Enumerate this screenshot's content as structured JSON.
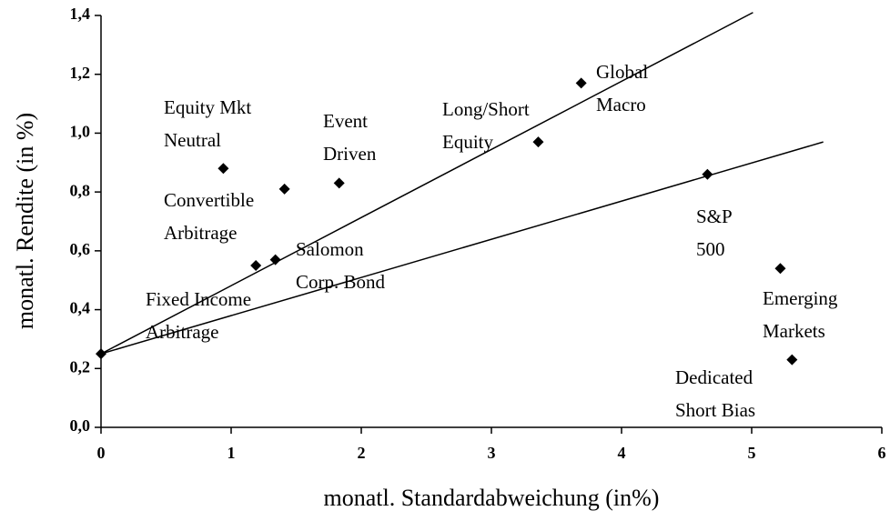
{
  "chart_data": {
    "type": "scatter",
    "x_label": "monatl. Standardabweichung (in%)",
    "y_label": "monatl. Rendite (in %)",
    "x": [
      0,
      0.94,
      1.41,
      1.83,
      1.19,
      1.34,
      3.36,
      3.69,
      4.66,
      5.22,
      5.31
    ],
    "values": [
      0.25,
      0.88,
      0.81,
      0.83,
      0.55,
      0.57,
      0.97,
      1.17,
      0.86,
      0.54,
      0.23
    ],
    "labels": [
      null,
      [
        "Equity Mkt",
        "Neutral"
      ],
      [
        "Convertible",
        "Arbitrage"
      ],
      [
        "Event",
        "Driven"
      ],
      [
        "Fixed Income",
        "Arbitrage"
      ],
      [
        "Salomon",
        "Corp. Bond"
      ],
      [
        "Long/Short",
        "Equity"
      ],
      [
        "Global",
        "Macro"
      ],
      [
        "S&P",
        "500"
      ],
      [
        "Emerging",
        "Markets"
      ],
      [
        "Dedicated",
        "Short Bias"
      ]
    ],
    "color": "#000000",
    "lines": [
      {
        "x": [
          0,
          5.01
        ],
        "values": [
          0.25,
          1.41
        ]
      },
      {
        "x": [
          0,
          5.55
        ],
        "values": [
          0.25,
          0.97
        ]
      }
    ],
    "xlim": [
      0,
      6
    ],
    "xticks": [
      0,
      1,
      2,
      3,
      4,
      5,
      6
    ],
    "ylim": [
      0,
      1.4
    ],
    "yticks": [
      {
        "value": 0,
        "label": "0,0"
      },
      {
        "value": 0.2,
        "label": "0,2"
      },
      {
        "value": 0.4,
        "label": "0,4"
      },
      {
        "value": 0.6,
        "label": "0,6"
      },
      {
        "value": 0.8,
        "label": "0,8"
      },
      {
        "value": 1.0,
        "label": "1,0"
      },
      {
        "value": 1.2,
        "label": "1,2"
      },
      {
        "value": 1.4,
        "label": "1,4"
      }
    ]
  }
}
